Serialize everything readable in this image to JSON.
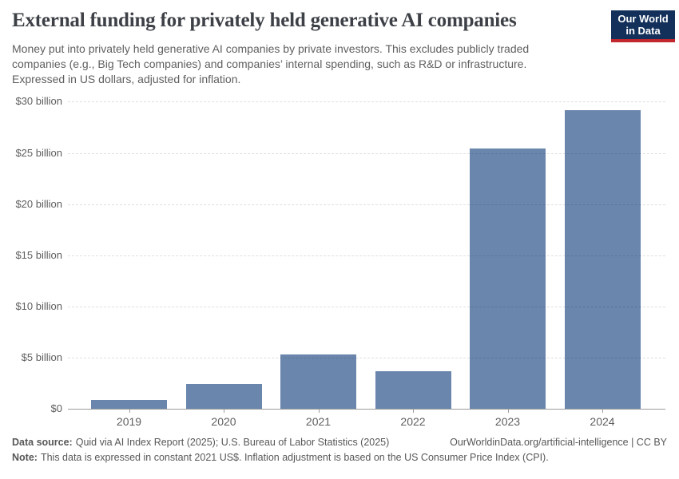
{
  "header": {
    "title": "External funding for privately held generative AI companies",
    "subtitle": "Money put into privately held generative AI companies by private investors. This excludes publicly traded companies (e.g., Big Tech companies) and companies’ internal spending, such as R&D or infrastructure. Expressed in US dollars, adjusted for inflation.",
    "logo": {
      "line1": "Our World",
      "line2": "in Data",
      "bg_color": "#12305a",
      "stripe_color": "#c2272d"
    }
  },
  "chart_data": {
    "type": "bar",
    "title": "External funding for privately held generative AI companies",
    "categories": [
      "2019",
      "2020",
      "2021",
      "2022",
      "2023",
      "2024"
    ],
    "values": [
      0.85,
      2.45,
      5.3,
      3.7,
      25.4,
      29.2
    ],
    "unit": "US$ billion (constant 2021 US$)",
    "xlabel": "",
    "ylabel": "",
    "ylim": [
      0,
      30
    ],
    "ytick_interval": 5,
    "ytick_labels": [
      "$0",
      "$5 billion",
      "$10 billion",
      "$15 billion",
      "$20 billion",
      "$25 billion",
      "$30 billion"
    ],
    "bar_color": "#6b86ad",
    "grid": true,
    "legend": "none"
  },
  "footer": {
    "source_label": "Data source:",
    "source_text": "Quid via AI Index Report (2025); U.S. Bureau of Labor Statistics (2025)",
    "attribution": "OurWorldinData.org/artificial-intelligence | CC BY",
    "note_label": "Note:",
    "note_text": "This data is expressed in constant 2021 US$. Inflation adjustment is based on the US Consumer Price Index (CPI)."
  }
}
